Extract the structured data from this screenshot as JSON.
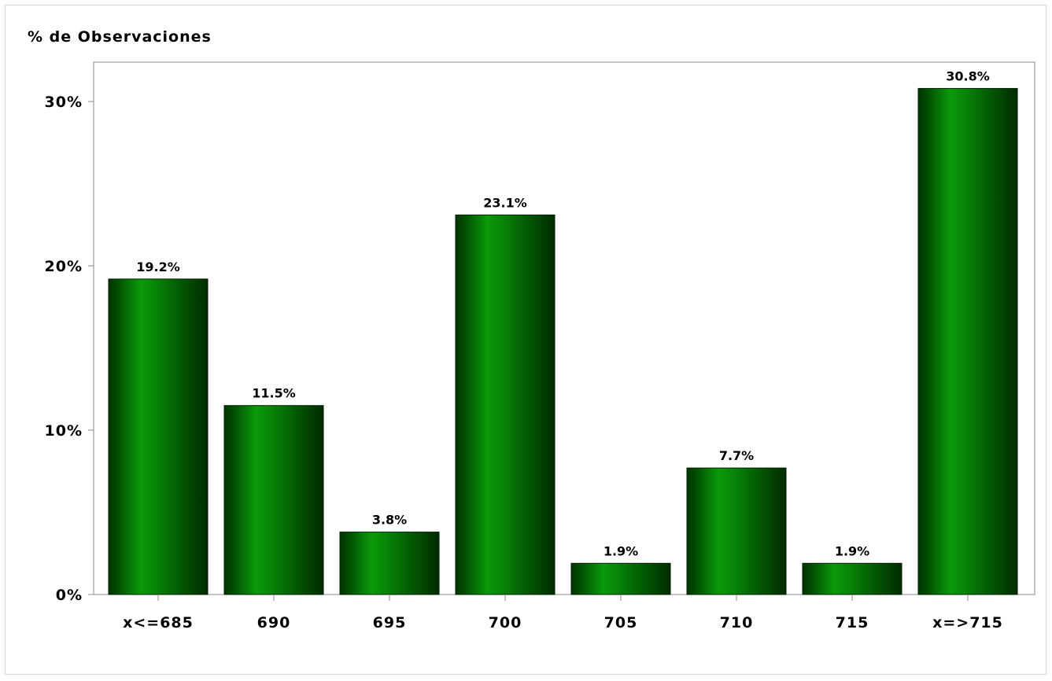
{
  "chart_data": {
    "type": "bar",
    "title": "",
    "ylabel": "% de Observaciones",
    "xlabel": "",
    "categories": [
      "x<=685",
      "690",
      "695",
      "700",
      "705",
      "710",
      "715",
      "x=>715"
    ],
    "values": [
      19.2,
      11.5,
      3.8,
      23.1,
      1.9,
      7.7,
      1.9,
      30.8
    ],
    "data_labels": [
      "19.2%",
      "11.5%",
      "3.8%",
      "23.1%",
      "1.9%",
      "7.7%",
      "1.9%",
      "30.8%"
    ],
    "ylim": [
      0,
      32.4
    ],
    "y_ticks": [
      {
        "value": 0,
        "label": "0%"
      },
      {
        "value": 10,
        "label": "10%"
      },
      {
        "value": 20,
        "label": "20%"
      },
      {
        "value": 30,
        "label": "30%"
      }
    ],
    "grid": false,
    "legend": "none",
    "colors": {
      "bar_edge": "#003300",
      "bar_highlight": "#0a9a0a",
      "frame": "#888888"
    }
  }
}
